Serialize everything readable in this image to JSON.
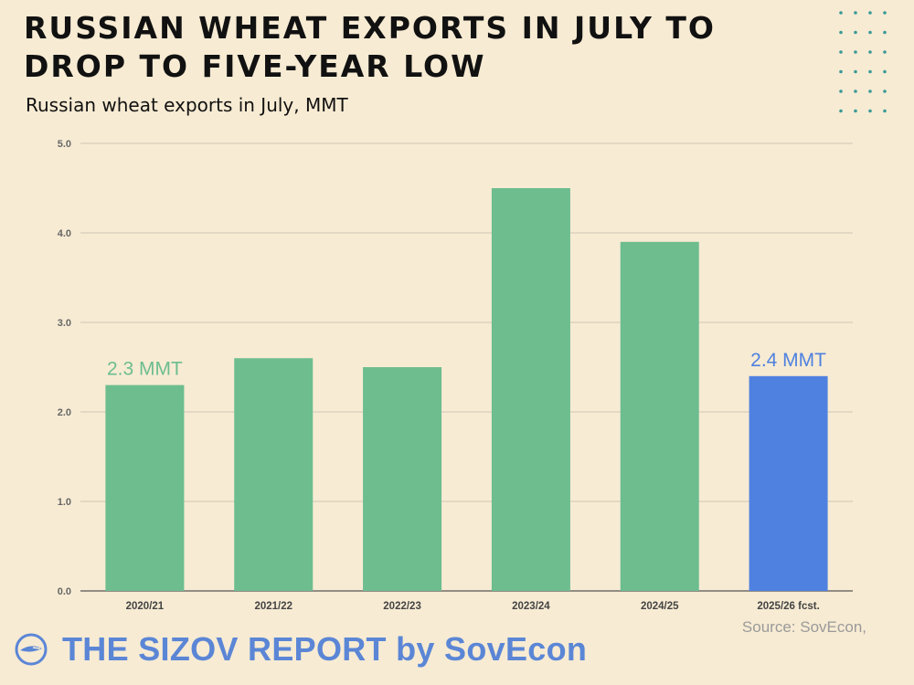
{
  "header": {
    "title": "RUSSIAN WHEAT EXPORTS IN JULY TO DROP TO FIVE-YEAR LOW",
    "subtitle": "Russian wheat exports in July, MMT"
  },
  "footer": {
    "source": "Source: SovEcon,",
    "brand": "THE SIZOV REPORT by SovEcon"
  },
  "colors": {
    "background": "#f7ebd3",
    "bar_green": "#6dbd8f",
    "bar_blue": "#4f81e0",
    "brand_blue": "#5b86d6",
    "dots_teal": "#3a9a97"
  },
  "chart_data": {
    "type": "bar",
    "title": "RUSSIAN WHEAT EXPORTS IN JULY TO DROP TO FIVE-YEAR LOW",
    "subtitle": "Russian wheat exports in July, MMT",
    "categories": [
      "2020/21",
      "2021/22",
      "2022/23",
      "2023/24",
      "2024/25",
      "2025/26 fcst."
    ],
    "values": [
      2.3,
      2.6,
      2.5,
      4.5,
      3.9,
      2.4
    ],
    "bar_colors": [
      "#6dbd8f",
      "#6dbd8f",
      "#6dbd8f",
      "#6dbd8f",
      "#6dbd8f",
      "#4f81e0"
    ],
    "yticks": [
      "0.0",
      "1.0",
      "2.0",
      "3.0",
      "4.0",
      "5.0"
    ],
    "ylim": [
      0,
      5
    ],
    "grid": true,
    "annotations": [
      {
        "category": "2020/21",
        "text": "2.3 MMT",
        "color": "#6dbd8f"
      },
      {
        "category": "2025/26 fcst.",
        "text": "2.4 MMT",
        "color": "#4f81e0"
      }
    ]
  }
}
